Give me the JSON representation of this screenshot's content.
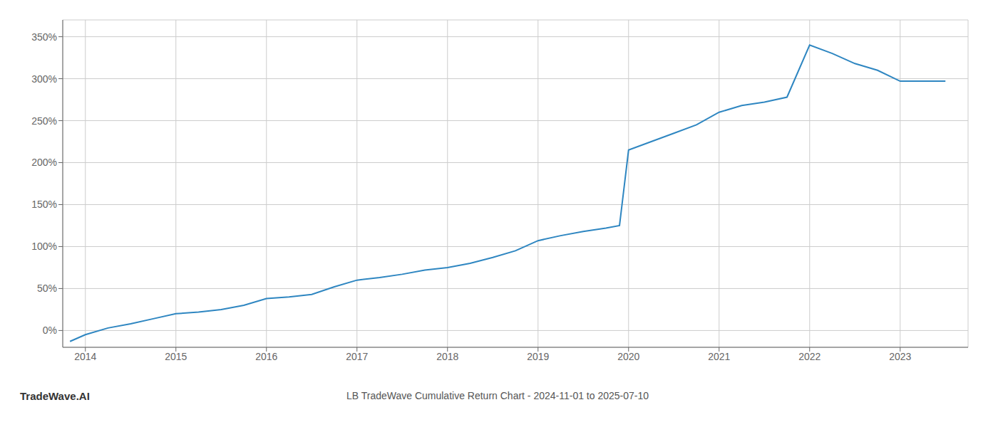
{
  "chart_data": {
    "type": "line",
    "title": "LB TradeWave Cumulative Return Chart - 2024-11-01 to 2025-07-10",
    "annotations": [
      "TradeWave.AI"
    ],
    "x": [
      2013.83,
      2014.0,
      2014.25,
      2014.5,
      2014.75,
      2015.0,
      2015.25,
      2015.5,
      2015.75,
      2016.0,
      2016.25,
      2016.5,
      2016.75,
      2017.0,
      2017.25,
      2017.5,
      2017.75,
      2018.0,
      2018.25,
      2018.5,
      2018.75,
      2019.0,
      2019.25,
      2019.5,
      2019.75,
      2019.9,
      2020.0,
      2020.25,
      2020.5,
      2020.75,
      2021.0,
      2021.25,
      2021.5,
      2021.75,
      2022.0,
      2022.25,
      2022.5,
      2022.75,
      2023.0,
      2023.5
    ],
    "values": [
      -13,
      -5,
      3,
      8,
      14,
      20,
      22,
      25,
      30,
      38,
      40,
      43,
      52,
      60,
      63,
      67,
      72,
      75,
      80,
      87,
      95,
      107,
      113,
      118,
      122,
      125,
      215,
      225,
      235,
      245,
      260,
      268,
      272,
      278,
      340,
      330,
      318,
      310,
      297,
      297
    ],
    "color": "#2e86c1",
    "xlim": [
      2013.75,
      2023.75
    ],
    "ylim": [
      -20,
      370
    ],
    "xticks": [
      2014,
      2015,
      2016,
      2017,
      2018,
      2019,
      2020,
      2021,
      2022,
      2023
    ],
    "yticks": [
      {
        "value": 0,
        "label": "0%"
      },
      {
        "value": 50,
        "label": "50%"
      },
      {
        "value": 100,
        "label": "100%"
      },
      {
        "value": 150,
        "label": "150%"
      },
      {
        "value": 200,
        "label": "200%"
      },
      {
        "value": 250,
        "label": "250%"
      },
      {
        "value": 300,
        "label": "300%"
      },
      {
        "value": 350,
        "label": "350%"
      }
    ],
    "grid": true
  }
}
